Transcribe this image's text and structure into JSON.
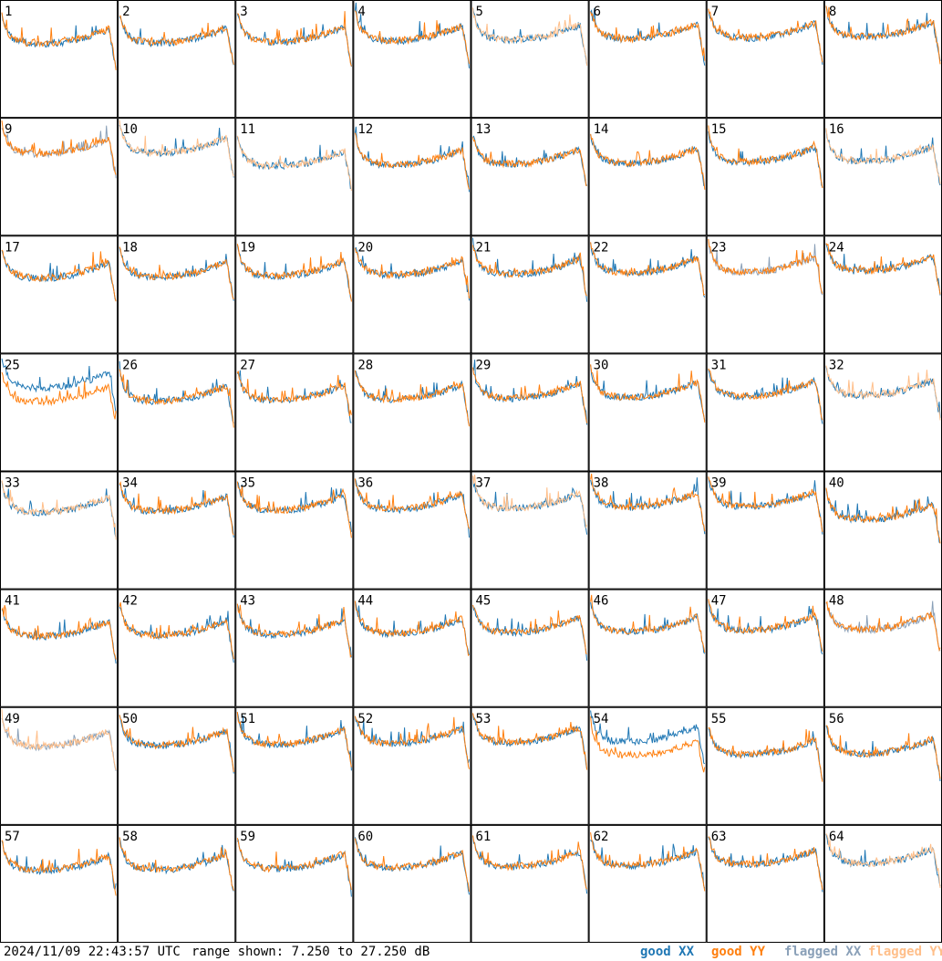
{
  "footer": {
    "timestamp": "2024/11/09 22:43:57 UTC",
    "range_text": "range shown: 7.250 to 27.250 dB"
  },
  "legend": [
    {
      "label": "good XX",
      "color": "#1f77b4"
    },
    {
      "label": "good YY",
      "color": "#ff7f0e"
    },
    {
      "label": "flagged XX",
      "color": "#8aa0b8"
    },
    {
      "label": "flagged YY",
      "color": "#ffbf8a"
    }
  ],
  "chart_data": {
    "type": "line",
    "title": "",
    "ylim": [
      7.25,
      27.25
    ],
    "yunit": "dB",
    "grid_rows": 8,
    "grid_cols": 8,
    "panels": [
      {
        "id": "1",
        "xx": "good",
        "yy": "good"
      },
      {
        "id": "2",
        "xx": "good",
        "yy": "good"
      },
      {
        "id": "3",
        "xx": "good",
        "yy": "good"
      },
      {
        "id": "4",
        "xx": "good",
        "yy": "good"
      },
      {
        "id": "5",
        "xx": "good",
        "yy": "flagged"
      },
      {
        "id": "6",
        "xx": "good",
        "yy": "good"
      },
      {
        "id": "7",
        "xx": "good",
        "yy": "good"
      },
      {
        "id": "8",
        "xx": "good",
        "yy": "good"
      },
      {
        "id": "9",
        "xx": "flagged",
        "yy": "good"
      },
      {
        "id": "10",
        "xx": "good",
        "yy": "flagged"
      },
      {
        "id": "11",
        "xx": "good",
        "yy": "flagged"
      },
      {
        "id": "12",
        "xx": "good",
        "yy": "good"
      },
      {
        "id": "13",
        "xx": "good",
        "yy": "good"
      },
      {
        "id": "14",
        "xx": "good",
        "yy": "good"
      },
      {
        "id": "15",
        "xx": "good",
        "yy": "good"
      },
      {
        "id": "16",
        "xx": "good",
        "yy": "flagged"
      },
      {
        "id": "17",
        "xx": "good",
        "yy": "good"
      },
      {
        "id": "18",
        "xx": "good",
        "yy": "good"
      },
      {
        "id": "19",
        "xx": "good",
        "yy": "good"
      },
      {
        "id": "20",
        "xx": "good",
        "yy": "good"
      },
      {
        "id": "21",
        "xx": "good",
        "yy": "good"
      },
      {
        "id": "22",
        "xx": "good",
        "yy": "good"
      },
      {
        "id": "23",
        "xx": "flagged",
        "yy": "good"
      },
      {
        "id": "24",
        "xx": "good",
        "yy": "good"
      },
      {
        "id": "25",
        "xx": "good",
        "yy": "good"
      },
      {
        "id": "26",
        "xx": "good",
        "yy": "good"
      },
      {
        "id": "27",
        "xx": "good",
        "yy": "good"
      },
      {
        "id": "28",
        "xx": "good",
        "yy": "good"
      },
      {
        "id": "29",
        "xx": "good",
        "yy": "good"
      },
      {
        "id": "30",
        "xx": "good",
        "yy": "good"
      },
      {
        "id": "31",
        "xx": "good",
        "yy": "good"
      },
      {
        "id": "32",
        "xx": "good",
        "yy": "flagged"
      },
      {
        "id": "33",
        "xx": "good",
        "yy": "flagged"
      },
      {
        "id": "34",
        "xx": "good",
        "yy": "good"
      },
      {
        "id": "35",
        "xx": "good",
        "yy": "good"
      },
      {
        "id": "36",
        "xx": "good",
        "yy": "good"
      },
      {
        "id": "37",
        "xx": "good",
        "yy": "flagged"
      },
      {
        "id": "38",
        "xx": "good",
        "yy": "good"
      },
      {
        "id": "39",
        "xx": "good",
        "yy": "good"
      },
      {
        "id": "40",
        "xx": "good",
        "yy": "good"
      },
      {
        "id": "41",
        "xx": "good",
        "yy": "good"
      },
      {
        "id": "42",
        "xx": "good",
        "yy": "good"
      },
      {
        "id": "43",
        "xx": "good",
        "yy": "good"
      },
      {
        "id": "44",
        "xx": "good",
        "yy": "good"
      },
      {
        "id": "45",
        "xx": "good",
        "yy": "good"
      },
      {
        "id": "46",
        "xx": "good",
        "yy": "good"
      },
      {
        "id": "47",
        "xx": "good",
        "yy": "good"
      },
      {
        "id": "48",
        "xx": "flagged",
        "yy": "good"
      },
      {
        "id": "49",
        "xx": "flagged",
        "yy": "flagged"
      },
      {
        "id": "50",
        "xx": "good",
        "yy": "good"
      },
      {
        "id": "51",
        "xx": "good",
        "yy": "good"
      },
      {
        "id": "52",
        "xx": "good",
        "yy": "good"
      },
      {
        "id": "53",
        "xx": "good",
        "yy": "good"
      },
      {
        "id": "54",
        "xx": "good",
        "yy": "good"
      },
      {
        "id": "55",
        "xx": "good",
        "yy": "good"
      },
      {
        "id": "56",
        "xx": "good",
        "yy": "good"
      },
      {
        "id": "57",
        "xx": "good",
        "yy": "good"
      },
      {
        "id": "58",
        "xx": "good",
        "yy": "good"
      },
      {
        "id": "59",
        "xx": "good",
        "yy": "good"
      },
      {
        "id": "60",
        "xx": "good",
        "yy": "good"
      },
      {
        "id": "61",
        "xx": "good",
        "yy": "good"
      },
      {
        "id": "62",
        "xx": "good",
        "yy": "good"
      },
      {
        "id": "63",
        "xx": "good",
        "yy": "good"
      },
      {
        "id": "64",
        "xx": "good",
        "yy": "flagged"
      }
    ]
  }
}
